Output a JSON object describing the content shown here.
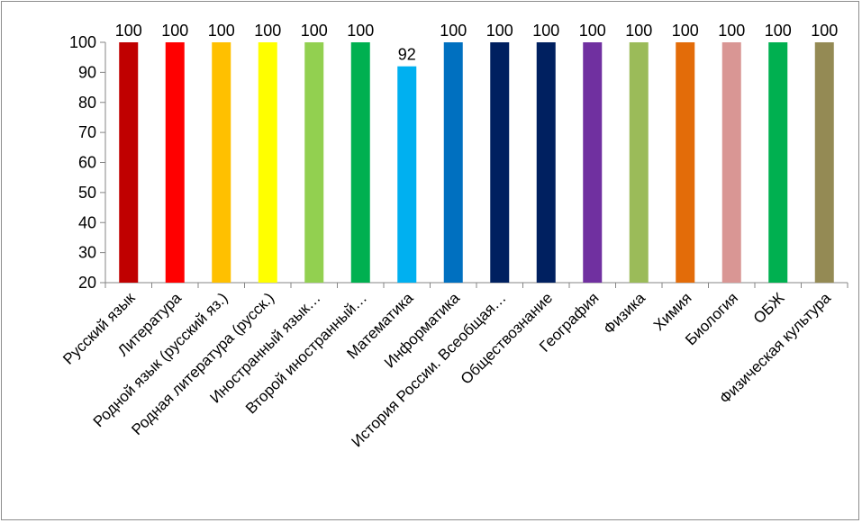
{
  "chart_data": {
    "type": "bar",
    "categories": [
      "Русский язык",
      "Литература",
      "Родной язык (русский яз.)",
      "Родная литература (русск.)",
      "Иностранный язык…",
      "Второй иностранный…",
      "Математика",
      "Информатика",
      "История России. Всеобщая…",
      "Обществознание",
      "География",
      "Физика",
      "Химия",
      "Биология",
      "ОБЖ",
      "Физическая культура"
    ],
    "values": [
      100,
      100,
      100,
      100,
      100,
      100,
      92,
      100,
      100,
      100,
      100,
      100,
      100,
      100,
      100,
      100
    ],
    "colors": [
      "#c00000",
      "#ff0000",
      "#ffc000",
      "#ffff00",
      "#92d050",
      "#00b050",
      "#00b0f0",
      "#0070c0",
      "#002060",
      "#002060",
      "#7030a0",
      "#9bbb59",
      "#e36c09",
      "#d99694",
      "#00b050",
      "#948a54"
    ],
    "yticks": [
      20,
      30,
      40,
      50,
      60,
      70,
      80,
      90,
      100
    ],
    "ylim": [
      20,
      100
    ],
    "title": "",
    "xlabel": "",
    "ylabel": "",
    "grid": false,
    "legend": "none"
  }
}
